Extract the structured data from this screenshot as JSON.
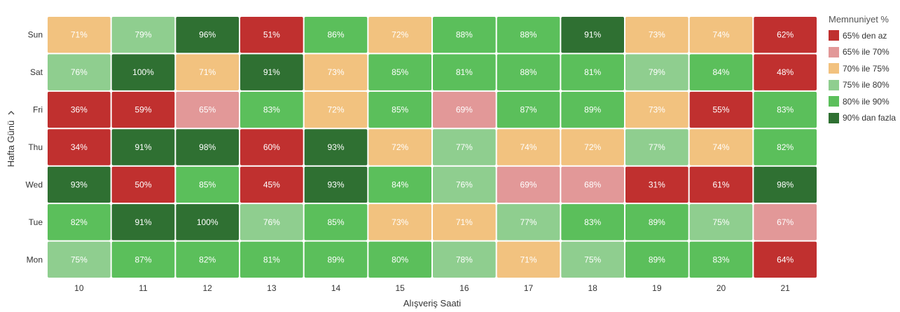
{
  "chart_data": {
    "type": "heatmap",
    "xlabel": "Alışveriş Saati",
    "ylabel": "Hafta Günü",
    "x": [
      "10",
      "11",
      "12",
      "13",
      "14",
      "15",
      "16",
      "17",
      "18",
      "19",
      "20",
      "21"
    ],
    "y": [
      "Sun",
      "Sat",
      "Fri",
      "Thu",
      "Wed",
      "Tue",
      "Mon"
    ],
    "values": [
      [
        71,
        79,
        96,
        51,
        86,
        72,
        88,
        88,
        91,
        73,
        74,
        62
      ],
      [
        76,
        100,
        71,
        91,
        73,
        85,
        81,
        88,
        81,
        79,
        84,
        48
      ],
      [
        36,
        59,
        65,
        83,
        72,
        85,
        69,
        87,
        89,
        73,
        55,
        83
      ],
      [
        34,
        91,
        98,
        60,
        93,
        72,
        77,
        74,
        72,
        77,
        74,
        82
      ],
      [
        93,
        50,
        85,
        45,
        93,
        84,
        76,
        69,
        68,
        31,
        61,
        98
      ],
      [
        82,
        91,
        100,
        76,
        85,
        73,
        71,
        77,
        83,
        89,
        75,
        67
      ],
      [
        75,
        87,
        82,
        81,
        89,
        80,
        78,
        71,
        75,
        89,
        83,
        64
      ]
    ],
    "value_suffix": "%",
    "legend": {
      "title": "Memnuniyet %",
      "position": "right",
      "items": [
        {
          "label": "65% den az",
          "color": "#c0302f",
          "min": 0,
          "max": 65
        },
        {
          "label": "65% ile 70%",
          "color": "#e29898",
          "min": 65,
          "max": 70
        },
        {
          "label": "70% ile 75%",
          "color": "#f2c27f",
          "min": 70,
          "max": 75
        },
        {
          "label": "75% ile 80%",
          "color": "#8fce8f",
          "min": 75,
          "max": 80
        },
        {
          "label": "80% ile 90%",
          "color": "#5bbf5b",
          "min": 80,
          "max": 90
        },
        {
          "label": "90% dan fazla",
          "color": "#2f7032",
          "min": 90,
          "max": 101
        }
      ]
    }
  },
  "icons": {
    "y_axis_toggle": "chevron-down-icon"
  }
}
